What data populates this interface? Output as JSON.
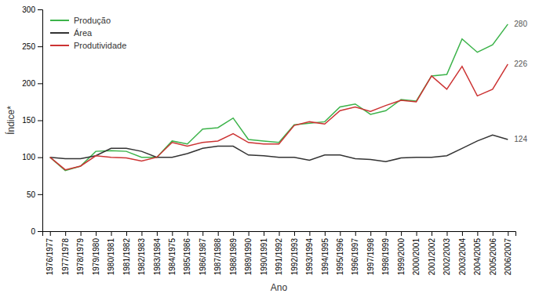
{
  "chart_data": {
    "type": "line",
    "x_label": "Ano",
    "y_label": "Índice*",
    "categories": [
      "1976/1977",
      "1977/1978",
      "1978/1979",
      "1979/1980",
      "1980/1981",
      "1981/1982",
      "1982/1983",
      "1983/1984",
      "1984/1975",
      "1985/1986",
      "1986/1987",
      "1987/1988",
      "1988/1989",
      "1989/1990",
      "1990/1991",
      "1991/1992",
      "1992/1993",
      "1993/1994",
      "1994/1995",
      "1995/1996",
      "1996/1997",
      "1997/1998",
      "1998/1999",
      "1999/2000",
      "2000/2001",
      "2001/2002",
      "2002/2003",
      "2003/2004",
      "2004/2005",
      "2005/2006",
      "2006/2007"
    ],
    "series": [
      {
        "name": "Produção",
        "color": "#3cb34a",
        "values": [
          100,
          82,
          88,
          108,
          109,
          108,
          100,
          100,
          122,
          118,
          138,
          140,
          153,
          124,
          122,
          120,
          144,
          146,
          148,
          168,
          172,
          158,
          163,
          178,
          176,
          210,
          212,
          260,
          242,
          252,
          280
        ]
      },
      {
        "name": "Área",
        "color": "#333333",
        "values": [
          100,
          98,
          98,
          102,
          112,
          112,
          108,
          100,
          100,
          105,
          112,
          115,
          115,
          103,
          102,
          100,
          100,
          96,
          103,
          103,
          98,
          97,
          94,
          99,
          100,
          100,
          102,
          112,
          122,
          130,
          124
        ]
      },
      {
        "name": "Produtividade",
        "color": "#cc3333",
        "values": [
          100,
          83,
          88,
          102,
          100,
          99,
          95,
          100,
          120,
          115,
          120,
          122,
          132,
          120,
          118,
          118,
          143,
          148,
          145,
          163,
          168,
          162,
          170,
          177,
          175,
          210,
          192,
          223,
          183,
          192,
          226
        ]
      }
    ],
    "annotations": [
      {
        "value": 280,
        "label": "280"
      },
      {
        "value": 226,
        "label": "226"
      },
      {
        "value": 124,
        "label": "124"
      }
    ],
    "ylim": [
      0,
      300
    ],
    "yticks": [
      0,
      50,
      100,
      150,
      200,
      250,
      300
    ],
    "grid": false,
    "legend": "upper left"
  }
}
